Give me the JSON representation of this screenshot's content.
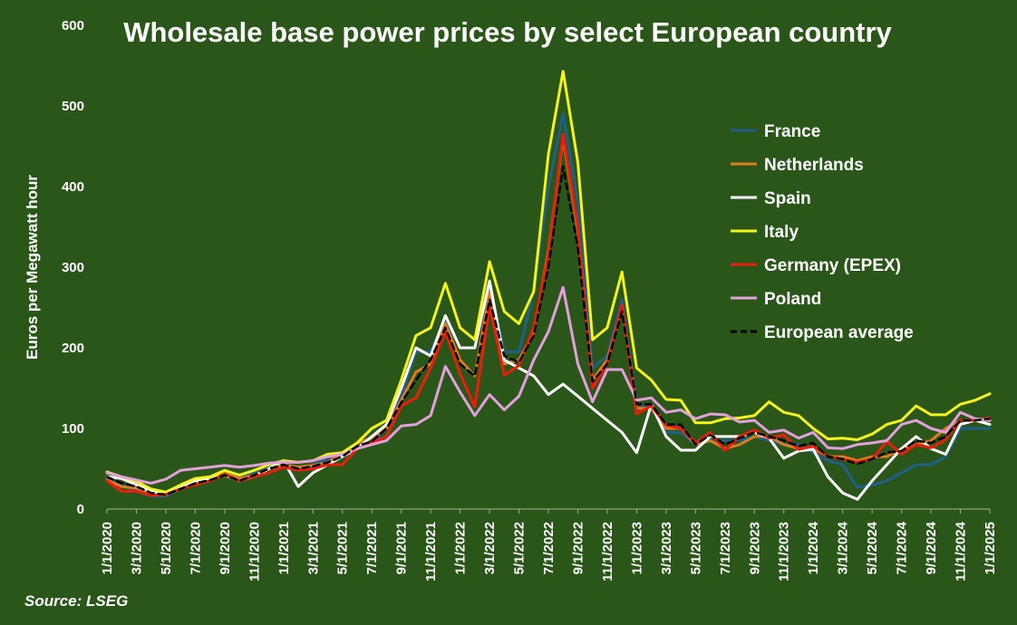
{
  "chart_data": {
    "type": "line",
    "title": "Wholesale base power prices by select European country",
    "ylabel": "Euros per Megawatt hour",
    "xlabel": "",
    "ylim": [
      0,
      600
    ],
    "yticks": [
      0,
      100,
      200,
      300,
      400,
      500,
      600
    ],
    "source": "Source: LSEG",
    "legend_position": "right",
    "x": [
      "1/1/2020",
      "2/1/2020",
      "3/1/2020",
      "4/1/2020",
      "5/1/2020",
      "6/1/2020",
      "7/1/2020",
      "8/1/2020",
      "9/1/2020",
      "10/1/2020",
      "11/1/2020",
      "12/1/2020",
      "1/1/2021",
      "2/1/2021",
      "3/1/2021",
      "4/1/2021",
      "5/1/2021",
      "6/1/2021",
      "7/1/2021",
      "8/1/2021",
      "9/1/2021",
      "10/1/2021",
      "11/1/2021",
      "12/1/2021",
      "1/1/2022",
      "2/1/2022",
      "3/1/2022",
      "4/1/2022",
      "5/1/2022",
      "6/1/2022",
      "7/1/2022",
      "8/1/2022",
      "9/1/2022",
      "10/1/2022",
      "11/1/2022",
      "12/1/2022",
      "1/1/2023",
      "2/1/2023",
      "3/1/2023",
      "4/1/2023",
      "5/1/2023",
      "6/1/2023",
      "7/1/2023",
      "8/1/2023",
      "9/1/2023",
      "10/1/2023",
      "11/1/2023",
      "12/1/2023",
      "1/1/2024",
      "2/1/2024",
      "3/1/2024",
      "4/1/2024",
      "5/1/2024",
      "6/1/2024",
      "7/1/2024",
      "8/1/2024",
      "9/1/2024",
      "10/1/2024",
      "11/1/2024",
      "12/1/2024",
      "1/1/2025"
    ],
    "xtick_labels": [
      "1/1/2020",
      "3/1/2020",
      "5/1/2020",
      "7/1/2020",
      "9/1/2020",
      "11/1/2020",
      "1/1/2021",
      "3/1/2021",
      "5/1/2021",
      "7/1/2021",
      "9/1/2021",
      "11/1/2021",
      "1/1/2022",
      "3/1/2022",
      "5/1/2022",
      "7/1/2022",
      "9/1/2022",
      "11/1/2022",
      "1/1/2023",
      "3/1/2023",
      "5/1/2023",
      "7/1/2023",
      "9/1/2023",
      "11/1/2023",
      "1/1/2024",
      "3/1/2024",
      "5/1/2024",
      "7/1/2024",
      "9/1/2024",
      "11/1/2024",
      "1/1/2025"
    ],
    "series": [
      {
        "name": "France",
        "color": "#1f5f8b",
        "dashed": false,
        "values": [
          38,
          30,
          22,
          16,
          16,
          25,
          32,
          38,
          45,
          40,
          45,
          52,
          58,
          50,
          55,
          62,
          70,
          82,
          80,
          100,
          140,
          195,
          195,
          235,
          200,
          200,
          280,
          195,
          195,
          270,
          400,
          490,
          380,
          175,
          190,
          260,
          130,
          125,
          95,
          95,
          80,
          85,
          85,
          85,
          90,
          85,
          80,
          80,
          70,
          60,
          55,
          27,
          30,
          35,
          45,
          55,
          55,
          65,
          100,
          100,
          100
        ]
      },
      {
        "name": "Netherlands",
        "color": "#e07b1f",
        "dashed": false,
        "values": [
          36,
          28,
          26,
          20,
          19,
          27,
          32,
          38,
          44,
          38,
          42,
          50,
          55,
          52,
          54,
          58,
          70,
          82,
          88,
          100,
          135,
          170,
          180,
          230,
          185,
          165,
          270,
          180,
          185,
          220,
          320,
          460,
          345,
          160,
          185,
          250,
          125,
          125,
          100,
          100,
          80,
          85,
          75,
          80,
          90,
          90,
          80,
          75,
          75,
          65,
          65,
          60,
          65,
          65,
          75,
          80,
          85,
          100,
          110,
          110,
          110
        ]
      },
      {
        "name": "Spain",
        "color": "#ffffff",
        "dashed": false,
        "values": [
          40,
          38,
          30,
          22,
          18,
          28,
          35,
          38,
          42,
          35,
          40,
          50,
          60,
          28,
          45,
          55,
          65,
          75,
          90,
          105,
          150,
          200,
          190,
          240,
          200,
          200,
          283,
          185,
          175,
          165,
          142,
          155,
          140,
          125,
          110,
          95,
          70,
          130,
          90,
          73,
          73,
          90,
          90,
          90,
          95,
          88,
          63,
          72,
          74,
          40,
          20,
          12,
          35,
          55,
          75,
          90,
          75,
          68,
          105,
          110,
          105
        ]
      },
      {
        "name": "Italy",
        "color": "#f5f51a",
        "dashed": false,
        "values": [
          46,
          40,
          34,
          25,
          21,
          30,
          38,
          40,
          48,
          42,
          48,
          55,
          60,
          58,
          60,
          68,
          70,
          82,
          100,
          110,
          160,
          215,
          225,
          280,
          225,
          210,
          307,
          245,
          230,
          270,
          440,
          543,
          430,
          210,
          225,
          294,
          175,
          160,
          136,
          135,
          107,
          107,
          112,
          113,
          116,
          133,
          120,
          116,
          100,
          87,
          88,
          86,
          93,
          105,
          110,
          128,
          117,
          117,
          130,
          135,
          143
        ]
      },
      {
        "name": "Germany (EPEX)",
        "color": "#ee1c0c",
        "dashed": false,
        "values": [
          35,
          22,
          22,
          17,
          18,
          25,
          30,
          35,
          43,
          35,
          40,
          45,
          52,
          48,
          50,
          55,
          55,
          75,
          82,
          90,
          128,
          138,
          175,
          220,
          168,
          127,
          252,
          166,
          178,
          225,
          315,
          465,
          350,
          150,
          180,
          253,
          118,
          128,
          104,
          100,
          82,
          95,
          73,
          90,
          98,
          88,
          92,
          74,
          78,
          65,
          62,
          58,
          62,
          84,
          68,
          80,
          76,
          86,
          110,
          110,
          113
        ]
      },
      {
        "name": "Poland",
        "color": "#e4a0dd",
        "dashed": false,
        "values": [
          45,
          40,
          36,
          32,
          37,
          48,
          50,
          52,
          54,
          52,
          54,
          57,
          58,
          58,
          60,
          65,
          68,
          75,
          80,
          85,
          103,
          105,
          116,
          177,
          145,
          116,
          142,
          123,
          140,
          185,
          220,
          275,
          180,
          133,
          173,
          173,
          135,
          138,
          120,
          123,
          112,
          118,
          117,
          108,
          110,
          95,
          98,
          88,
          95,
          76,
          75,
          80,
          82,
          85,
          105,
          110,
          100,
          95,
          120,
          112,
          110
        ]
      },
      {
        "name": "European average",
        "color": "#000000",
        "dashed": true,
        "values": [
          40,
          32,
          28,
          20,
          18,
          25,
          32,
          36,
          42,
          35,
          42,
          50,
          55,
          50,
          53,
          58,
          65,
          78,
          84,
          100,
          132,
          160,
          185,
          225,
          180,
          165,
          260,
          190,
          182,
          215,
          300,
          425,
          325,
          158,
          180,
          245,
          130,
          130,
          105,
          105,
          80,
          92,
          80,
          88,
          95,
          90,
          85,
          78,
          82,
          65,
          62,
          56,
          62,
          70,
          72,
          85,
          82,
          90,
          110,
          110,
          112
        ]
      }
    ]
  }
}
